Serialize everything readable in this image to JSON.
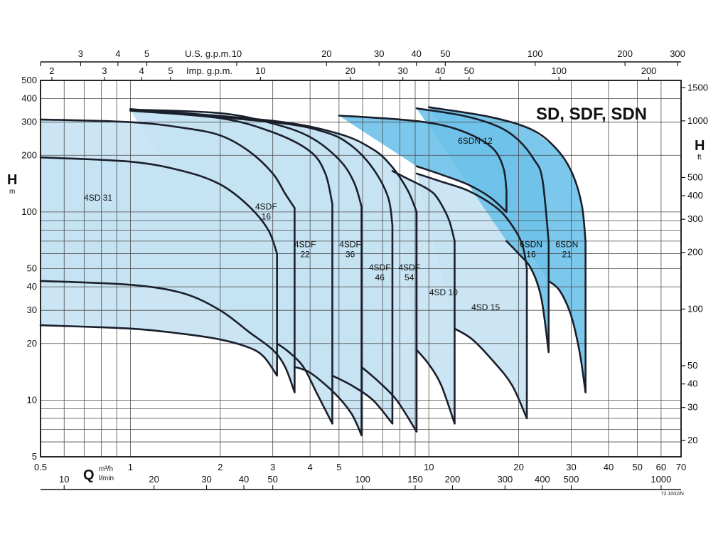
{
  "chart_data": {
    "type": "line",
    "title": "SD, SDF, SDN",
    "code": "72.1002/N",
    "x_scale": "log",
    "y_scale": "log",
    "xlim": [
      0.5,
      70
    ],
    "ylim": [
      5,
      500
    ],
    "grid": true,
    "axes": {
      "bottom_primary": {
        "unit_letter": "Q",
        "unit": "m³/h",
        "ticks": [
          {
            "v": 0.5,
            "label": "0.5"
          },
          {
            "v": 1,
            "label": "1"
          },
          {
            "v": 2,
            "label": "2"
          },
          {
            "v": 3,
            "label": "3"
          },
          {
            "v": 4,
            "label": "4"
          },
          {
            "v": 5,
            "label": "5"
          },
          {
            "v": 10,
            "label": "10"
          },
          {
            "v": 20,
            "label": "20"
          },
          {
            "v": 30,
            "label": "30"
          },
          {
            "v": 40,
            "label": "40"
          },
          {
            "v": 50,
            "label": "50"
          },
          {
            "v": 60,
            "label": "60"
          },
          {
            "v": 70,
            "label": "70"
          }
        ]
      },
      "bottom_secondary": {
        "unit": "l/min",
        "ticks": [
          {
            "v": 10,
            "label": "10"
          },
          {
            "v": 20,
            "label": "20"
          },
          {
            "v": 30,
            "label": "30"
          },
          {
            "v": 40,
            "label": "40"
          },
          {
            "v": 50,
            "label": "50"
          },
          {
            "v": 100,
            "label": "100"
          },
          {
            "v": 150,
            "label": "150"
          },
          {
            "v": 200,
            "label": "200"
          },
          {
            "v": 300,
            "label": "300"
          },
          {
            "v": 400,
            "label": "400"
          },
          {
            "v": 500,
            "label": "500"
          },
          {
            "v": 1000,
            "label": "1000"
          }
        ]
      },
      "top_usgpm": {
        "unit": "U.S. g.p.m.",
        "ticks": [
          {
            "v": 3,
            "label": "3"
          },
          {
            "v": 4,
            "label": "4"
          },
          {
            "v": 5,
            "label": "5"
          },
          {
            "v": 10,
            "label": "10"
          },
          {
            "v": 20,
            "label": "20"
          },
          {
            "v": 30,
            "label": "30"
          },
          {
            "v": 40,
            "label": "40"
          },
          {
            "v": 50,
            "label": "50"
          },
          {
            "v": 100,
            "label": "100"
          },
          {
            "v": 200,
            "label": "200"
          },
          {
            "v": 300,
            "label": "300"
          }
        ]
      },
      "top_impgpm": {
        "unit": "Imp. g.p.m.",
        "ticks": [
          {
            "v": 2,
            "label": "2"
          },
          {
            "v": 3,
            "label": "3"
          },
          {
            "v": 4,
            "label": "4"
          },
          {
            "v": 5,
            "label": "5"
          },
          {
            "v": 10,
            "label": "10"
          },
          {
            "v": 20,
            "label": "20"
          },
          {
            "v": 30,
            "label": "30"
          },
          {
            "v": 40,
            "label": "40"
          },
          {
            "v": 50,
            "label": "50"
          },
          {
            "v": 100,
            "label": "100"
          },
          {
            "v": 200,
            "label": "200"
          }
        ]
      },
      "left": {
        "unit_letter": "H",
        "unit": "m",
        "ticks": [
          {
            "v": 5,
            "label": "5"
          },
          {
            "v": 10,
            "label": "10"
          },
          {
            "v": 20,
            "label": "20"
          },
          {
            "v": 30,
            "label": "30"
          },
          {
            "v": 40,
            "label": "40"
          },
          {
            "v": 50,
            "label": "50"
          },
          {
            "v": 100,
            "label": "100"
          },
          {
            "v": 200,
            "label": "200"
          },
          {
            "v": 300,
            "label": "300"
          },
          {
            "v": 400,
            "label": "400"
          },
          {
            "v": 500,
            "label": "500"
          }
        ]
      },
      "right": {
        "unit_letter": "H",
        "unit": "ft",
        "ticks": [
          {
            "v": 20,
            "label": "20"
          },
          {
            "v": 30,
            "label": "30"
          },
          {
            "v": 40,
            "label": "40"
          },
          {
            "v": 50,
            "label": "50"
          },
          {
            "v": 100,
            "label": "100"
          },
          {
            "v": 200,
            "label": "200"
          },
          {
            "v": 300,
            "label": "300"
          },
          {
            "v": 400,
            "label": "400"
          },
          {
            "v": 500,
            "label": "500"
          },
          {
            "v": 1000,
            "label": "1000"
          },
          {
            "v": 1500,
            "label": "1500"
          }
        ]
      }
    },
    "colors": {
      "light_fill": "#c5e2f3",
      "dark_fill": "#6ec2ea",
      "curve": "#1a1f2b",
      "grid": "#4a4a4a"
    },
    "series": [
      {
        "name": "4SD 31",
        "fill": "light",
        "upper": [
          [
            0.5,
            195
          ],
          [
            1,
            185
          ],
          [
            1.5,
            165
          ],
          [
            2,
            140
          ],
          [
            2.5,
            107
          ],
          [
            2.9,
            80
          ],
          [
            3.1,
            60
          ]
        ],
        "lower": [
          [
            0.5,
            25
          ],
          [
            1,
            24
          ],
          [
            1.5,
            22.5
          ],
          [
            2,
            21
          ],
          [
            2.5,
            19
          ],
          [
            2.8,
            17
          ],
          [
            3.1,
            13.5
          ]
        ]
      },
      {
        "name": "4SDF 16",
        "fill": "light",
        "upper": [
          [
            0.5,
            310
          ],
          [
            1,
            300
          ],
          [
            1.5,
            280
          ],
          [
            2,
            255
          ],
          [
            2.5,
            210
          ],
          [
            3,
            160
          ],
          [
            3.3,
            125
          ],
          [
            3.55,
            105
          ]
        ],
        "lower": [
          [
            0.5,
            43
          ],
          [
            1,
            41
          ],
          [
            1.5,
            37
          ],
          [
            2,
            30
          ],
          [
            2.5,
            23
          ],
          [
            3,
            18.5
          ],
          [
            3.3,
            15
          ],
          [
            3.55,
            11
          ]
        ]
      },
      {
        "name": "4SDF 22",
        "fill": "light",
        "upper": [
          [
            1,
            345
          ],
          [
            2,
            315
          ],
          [
            3,
            265
          ],
          [
            4,
            210
          ],
          [
            4.5,
            160
          ],
          [
            4.75,
            110
          ]
        ],
        "lower": [
          [
            3.1,
            20
          ],
          [
            3.4,
            18
          ],
          [
            3.8,
            15
          ],
          [
            4.2,
            11
          ],
          [
            4.75,
            7.5
          ]
        ]
      },
      {
        "name": "4SDF 36",
        "fill": "light",
        "upper": [
          [
            1,
            350
          ],
          [
            2,
            335
          ],
          [
            3,
            295
          ],
          [
            4,
            250
          ],
          [
            5,
            190
          ],
          [
            5.6,
            145
          ],
          [
            5.95,
            107
          ]
        ],
        "lower": [
          [
            3.55,
            15
          ],
          [
            4,
            14
          ],
          [
            4.8,
            11
          ],
          [
            5.5,
            8.5
          ],
          [
            5.95,
            6.5
          ]
        ]
      },
      {
        "name": "4SDF 46",
        "fill": "light",
        "upper": [
          [
            1,
            348
          ],
          [
            3,
            300
          ],
          [
            4.5,
            265
          ],
          [
            5.5,
            225
          ],
          [
            6.5,
            170
          ],
          [
            7.3,
            120
          ],
          [
            7.55,
            85
          ]
        ],
        "lower": [
          [
            4.75,
            13.5
          ],
          [
            5.5,
            12
          ],
          [
            6.5,
            10
          ],
          [
            7.55,
            7.5
          ]
        ]
      },
      {
        "name": "4SDF 54",
        "fill": "light",
        "upper": [
          [
            1,
            352
          ],
          [
            3,
            305
          ],
          [
            5,
            260
          ],
          [
            6.5,
            215
          ],
          [
            7.5,
            175
          ],
          [
            8.5,
            130
          ],
          [
            9.1,
            100
          ]
        ],
        "lower": [
          [
            5.95,
            15
          ],
          [
            6.8,
            12.5
          ],
          [
            7.8,
            10
          ],
          [
            9.1,
            6.8
          ]
        ]
      },
      {
        "name": "4SD 10",
        "fill": "light",
        "upper": [
          [
            7.55,
            165
          ],
          [
            8.5,
            150
          ],
          [
            9.7,
            135
          ],
          [
            10.4,
            125
          ],
          [
            11,
            110
          ],
          [
            11.7,
            90
          ],
          [
            12.2,
            70
          ]
        ],
        "lower": [
          [
            9.1,
            18.5
          ],
          [
            10,
            15.5
          ],
          [
            11,
            12
          ],
          [
            12.2,
            7.5
          ]
        ]
      },
      {
        "name": "4SD 15",
        "fill": "light",
        "upper": [
          [
            9.1,
            160
          ],
          [
            11,
            145
          ],
          [
            13.5,
            130
          ],
          [
            16.5,
            108
          ],
          [
            18.5,
            90
          ],
          [
            20.5,
            68
          ],
          [
            21.3,
            50
          ]
        ],
        "lower": [
          [
            12.2,
            24
          ],
          [
            14,
            21
          ],
          [
            16.5,
            16
          ],
          [
            19,
            12
          ],
          [
            21.3,
            8
          ]
        ]
      },
      {
        "name": "6SDN 12",
        "fill": "dark",
        "upper": [
          [
            5,
            325
          ],
          [
            8,
            310
          ],
          [
            11,
            290
          ],
          [
            14,
            255
          ],
          [
            16.5,
            215
          ],
          [
            17.8,
            170
          ],
          [
            18.2,
            130
          ]
        ],
        "lower": [
          [
            9.1,
            175
          ],
          [
            11,
            158
          ],
          [
            13.5,
            140
          ],
          [
            16,
            120
          ],
          [
            18.2,
            100
          ]
        ]
      },
      {
        "name": "6SDN 16",
        "fill": "dark",
        "upper": [
          [
            9.1,
            355
          ],
          [
            13,
            325
          ],
          [
            17,
            285
          ],
          [
            20,
            240
          ],
          [
            22.5,
            190
          ],
          [
            24,
            150
          ],
          [
            25.2,
            70
          ]
        ],
        "lower": [
          [
            18.2,
            70
          ],
          [
            20,
            60
          ],
          [
            22,
            50
          ],
          [
            23.8,
            35
          ],
          [
            25.2,
            18
          ]
        ]
      },
      {
        "name": "6SDN 21",
        "fill": "dark",
        "upper": [
          [
            10,
            360
          ],
          [
            16,
            320
          ],
          [
            22,
            275
          ],
          [
            26.5,
            220
          ],
          [
            30,
            165
          ],
          [
            32.5,
            110
          ],
          [
            33.5,
            70
          ]
        ],
        "lower": [
          [
            25.2,
            43
          ],
          [
            27.5,
            38
          ],
          [
            30,
            28
          ],
          [
            32,
            18
          ],
          [
            33.5,
            11
          ]
        ]
      }
    ],
    "zone_labels": [
      {
        "lines": [
          "4SD 31"
        ],
        "x": 0.78,
        "y": 115
      },
      {
        "lines": [
          "4SDF",
          "16"
        ],
        "x": 2.85,
        "y": 103
      },
      {
        "lines": [
          "4SDF",
          "22"
        ],
        "x": 3.85,
        "y": 65
      },
      {
        "lines": [
          "4SDF",
          "36"
        ],
        "x": 5.45,
        "y": 65
      },
      {
        "lines": [
          "4SDF",
          "46"
        ],
        "x": 6.85,
        "y": 49
      },
      {
        "lines": [
          "4SDF",
          "54"
        ],
        "x": 8.6,
        "y": 49
      },
      {
        "lines": [
          "6SDN 12"
        ],
        "x": 14.3,
        "y": 230
      },
      {
        "lines": [
          "4SD 10"
        ],
        "x": 11.2,
        "y": 36
      },
      {
        "lines": [
          "4SD 15"
        ],
        "x": 15.5,
        "y": 30
      },
      {
        "lines": [
          "6SDN",
          "16"
        ],
        "x": 22,
        "y": 65
      },
      {
        "lines": [
          "6SDN",
          "21"
        ],
        "x": 29,
        "y": 65
      }
    ]
  }
}
